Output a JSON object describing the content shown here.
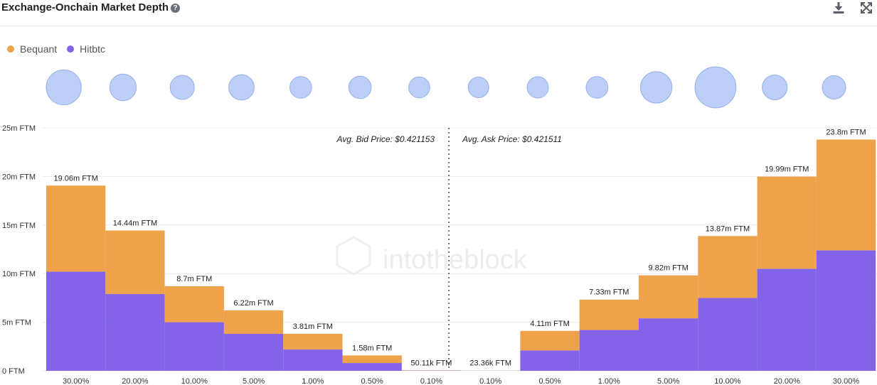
{
  "header": {
    "title": "Exchange-Onchain Market Depth",
    "help_icon": "question-circle-icon",
    "download_icon": "download-icon",
    "expand_icon": "expand-icon"
  },
  "watermark": "intotheblock",
  "colors": {
    "bequant": "#EEA24A",
    "hitbtc": "#8364E8",
    "bubble_fill": "#BDCFF7",
    "bubble_stroke": "#94AFE9"
  },
  "legend": [
    {
      "name": "Bequant",
      "color": "#EEA24A"
    },
    {
      "name": "Hitbtc",
      "color": "#8364E8"
    }
  ],
  "annotations": {
    "avg_bid": "Avg. Bid Price: $0.421153",
    "avg_ask": "Avg. Ask Price: $0.421511"
  },
  "chart_data": {
    "type": "bar",
    "stacked": true,
    "categories": [
      "30.00%",
      "20.00%",
      "10.00%",
      "5.00%",
      "1.00%",
      "0.50%",
      "0.10%",
      "0.10%",
      "0.50%",
      "1.00%",
      "5.00%",
      "10.00%",
      "20.00%",
      "30.00%"
    ],
    "series": [
      {
        "name": "Hitbtc",
        "values": [
          10.2,
          7.9,
          5.0,
          3.8,
          2.2,
          0.8,
          0.03,
          0.01,
          2.1,
          4.2,
          5.4,
          7.5,
          10.5,
          12.4
        ]
      },
      {
        "name": "Bequant",
        "values": [
          8.86,
          6.54,
          3.7,
          2.42,
          1.61,
          0.78,
          0.02,
          0.01,
          2.01,
          3.13,
          4.42,
          6.37,
          9.49,
          11.4
        ]
      }
    ],
    "totals": [
      19.06,
      14.44,
      8.7,
      6.22,
      3.81,
      1.58,
      0.05011,
      0.02336,
      4.11,
      7.33,
      9.82,
      13.87,
      19.99,
      23.8
    ],
    "total_labels": [
      "19.06m FTM",
      "14.44m FTM",
      "8.7m FTM",
      "6.22m FTM",
      "3.81m FTM",
      "1.58m FTM",
      "50.11k FTM",
      "23.36k FTM",
      "4.11m FTM",
      "7.33m FTM",
      "9.82m FTM",
      "13.87m FTM",
      "19.99m FTM",
      "23.8m FTM"
    ],
    "y_ticks": [
      0,
      5,
      10,
      15,
      20,
      25
    ],
    "y_tick_labels": [
      "0 FTM",
      "5m FTM",
      "10m FTM",
      "15m FTM",
      "20m FTM",
      "25m FTM"
    ],
    "ylim": [
      0,
      25
    ],
    "bubbles": [
      1.45,
      1.1,
      1.0,
      1.05,
      0.9,
      0.93,
      0.87,
      0.85,
      0.88,
      0.9,
      1.3,
      1.7,
      1.03,
      0.97
    ],
    "grid": true,
    "legend_position": "top-left"
  }
}
